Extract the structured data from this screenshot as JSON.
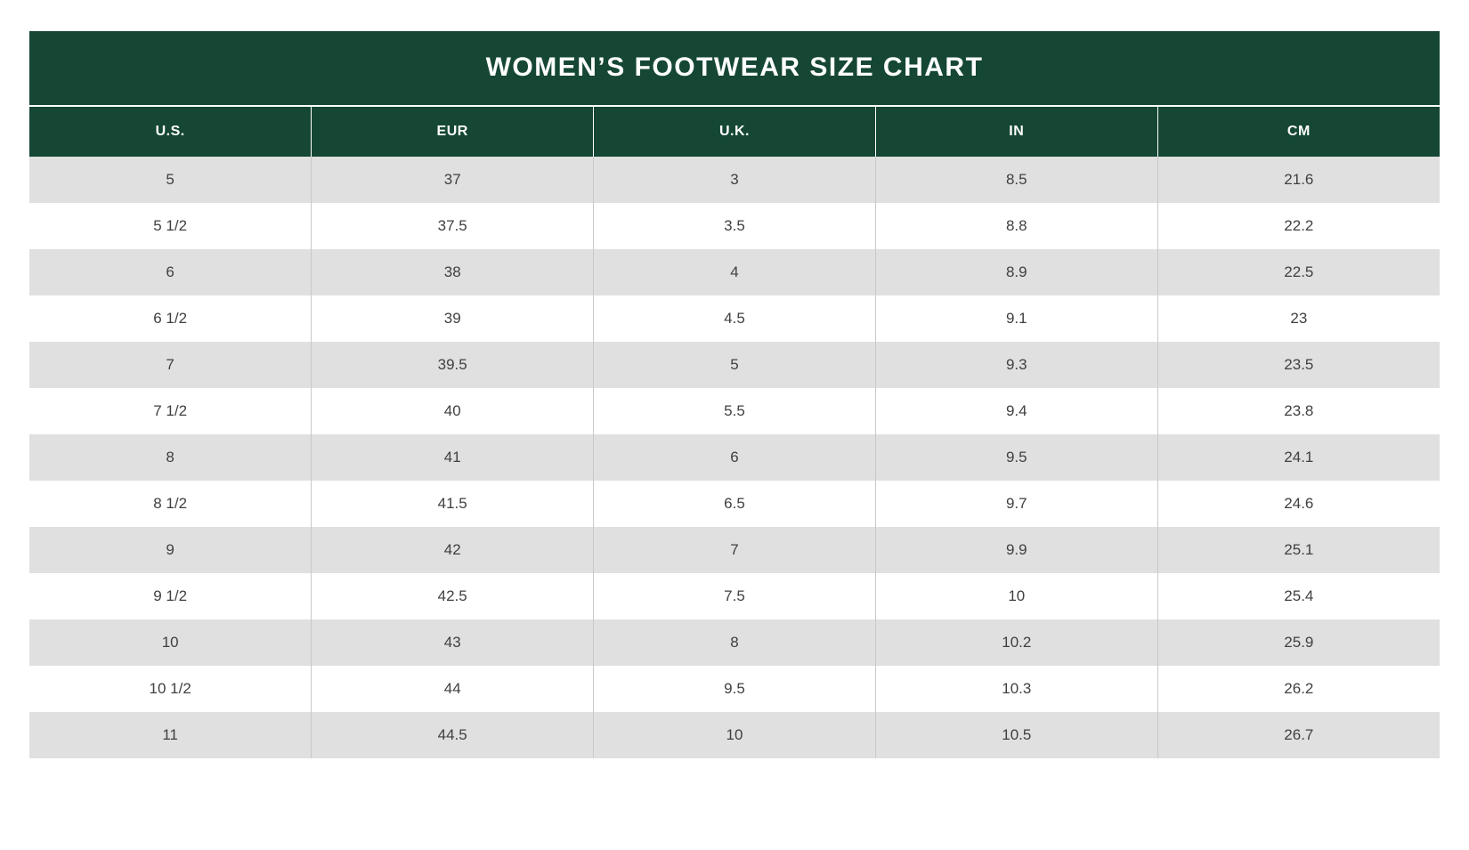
{
  "page": {
    "background_color": "#ffffff"
  },
  "table_style": {
    "header_bg": "#154734",
    "header_text_color": "#ffffff",
    "row_alt_bg": "#e0e0e0",
    "row_bg": "#ffffff",
    "body_text_color": "#404040",
    "column_divider_color": "#c9c9c9"
  },
  "chart_data": {
    "type": "table",
    "title": "WOMEN’S FOOTWEAR SIZE CHART",
    "columns": [
      "U.S.",
      "EUR",
      "U.K.",
      "IN",
      "CM"
    ],
    "rows": [
      [
        "5",
        "37",
        "3",
        "8.5",
        "21.6"
      ],
      [
        "5 1/2",
        "37.5",
        "3.5",
        "8.8",
        "22.2"
      ],
      [
        "6",
        "38",
        "4",
        "8.9",
        "22.5"
      ],
      [
        "6 1/2",
        "39",
        "4.5",
        "9.1",
        "23"
      ],
      [
        "7",
        "39.5",
        "5",
        "9.3",
        "23.5"
      ],
      [
        "7 1/2",
        "40",
        "5.5",
        "9.4",
        "23.8"
      ],
      [
        "8",
        "41",
        "6",
        "9.5",
        "24.1"
      ],
      [
        "8 1/2",
        "41.5",
        "6.5",
        "9.7",
        "24.6"
      ],
      [
        "9",
        "42",
        "7",
        "9.9",
        "25.1"
      ],
      [
        "9 1/2",
        "42.5",
        "7.5",
        "10",
        "25.4"
      ],
      [
        "10",
        "43",
        "8",
        "10.2",
        "25.9"
      ],
      [
        "10 1/2",
        "44",
        "9.5",
        "10.3",
        "26.2"
      ],
      [
        "11",
        "44.5",
        "10",
        "10.5",
        "26.7"
      ]
    ]
  }
}
